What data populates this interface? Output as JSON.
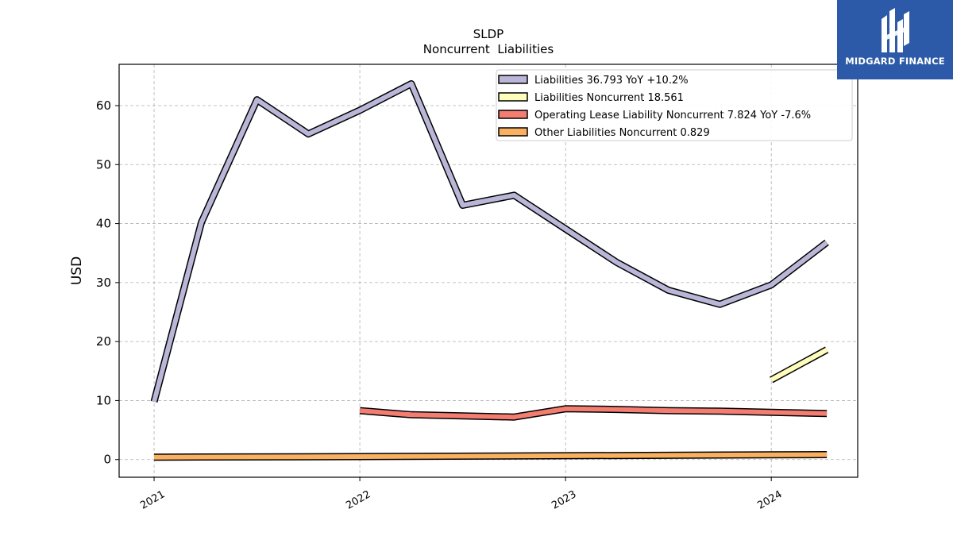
{
  "brand": {
    "name": "MIDGARD FINANCE",
    "bg_color": "#2c5aa8"
  },
  "chart_data": {
    "type": "line",
    "title": "SLDP",
    "subtitle": "Noncurrent  Liabilities",
    "ylabel": "USD",
    "xlabel": "",
    "ylim": [
      -3,
      67
    ],
    "yticks": [
      0,
      10,
      20,
      30,
      40,
      50,
      60
    ],
    "xlim": [
      2020.83,
      2024.42
    ],
    "xticks": [
      2021,
      2022,
      2023,
      2024
    ],
    "grid": true,
    "legend_position": "top-right",
    "series": [
      {
        "name": "Liabilities",
        "legend_label": "Liabilities  36.793 YoY +10.2%",
        "color": "#b9b6d8",
        "points": [
          [
            2021.0,
            9.8
          ],
          [
            2021.23,
            40.2
          ],
          [
            2021.5,
            61.0
          ],
          [
            2021.75,
            55.2
          ],
          [
            2022.0,
            59.2
          ],
          [
            2022.25,
            63.7
          ],
          [
            2022.5,
            43.1
          ],
          [
            2022.75,
            44.8
          ],
          [
            2023.0,
            39.1
          ],
          [
            2023.25,
            33.4
          ],
          [
            2023.5,
            28.7
          ],
          [
            2023.75,
            26.3
          ],
          [
            2024.0,
            29.6
          ],
          [
            2024.27,
            36.8
          ]
        ]
      },
      {
        "name": "Liabilities Noncurrent",
        "legend_label": "Liabilities Noncurrent  18.561",
        "color": "#fefdbc",
        "points": [
          [
            2024.0,
            13.5
          ],
          [
            2024.27,
            18.6
          ]
        ]
      },
      {
        "name": "Operating Lease Liability Noncurrent",
        "legend_label": "Operating Lease Liability Noncurrent  7.824 YoY -7.6%",
        "color": "#f47d71",
        "points": [
          [
            2022.0,
            8.3
          ],
          [
            2022.25,
            7.6
          ],
          [
            2022.75,
            7.2
          ],
          [
            2023.0,
            8.6
          ],
          [
            2023.25,
            8.5
          ],
          [
            2023.5,
            8.3
          ],
          [
            2023.75,
            8.2
          ],
          [
            2024.0,
            8.0
          ],
          [
            2024.27,
            7.8
          ]
        ]
      },
      {
        "name": "Other Liabilities Noncurrent",
        "legend_label": "Other Liabilities Noncurrent  0.829",
        "color": "#f9b060",
        "points": [
          [
            2021.0,
            0.4
          ],
          [
            2022.0,
            0.5
          ],
          [
            2023.0,
            0.65
          ],
          [
            2024.0,
            0.8
          ],
          [
            2024.27,
            0.83
          ]
        ]
      }
    ]
  }
}
